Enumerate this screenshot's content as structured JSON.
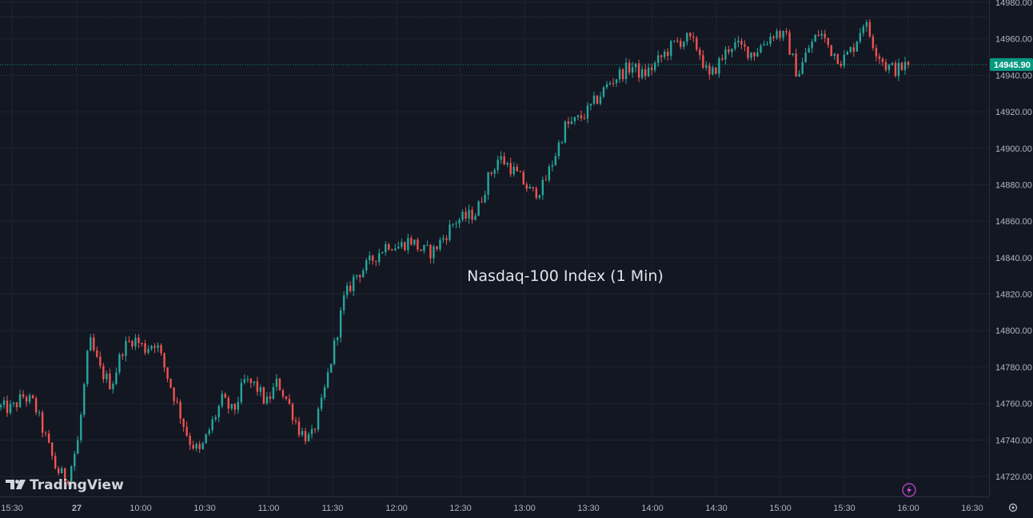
{
  "chart_data": {
    "type": "candlestick",
    "title": "Nasdaq-100 Index (1 Min)",
    "brand": "TradingView",
    "last_price": "14945.90",
    "high_line": 14972,
    "ylim": [
      14714,
      14980
    ],
    "y_ticks": [
      "14720.00",
      "14740.00",
      "14760.00",
      "14780.00",
      "14800.00",
      "14820.00",
      "14840.00",
      "14860.00",
      "14880.00",
      "14900.00",
      "14920.00",
      "14940.00",
      "14960.00",
      "14980.00"
    ],
    "x_ticks": [
      "15:30",
      "27",
      "10:00",
      "10:30",
      "11:00",
      "11:30",
      "12:00",
      "12:30",
      "13:00",
      "13:30",
      "14:00",
      "14:30",
      "15:00",
      "15:30",
      "16:00",
      "16:30"
    ],
    "colors": {
      "up": "#26a69a",
      "down": "#ef5350",
      "background": "#131722",
      "grid": "#1f2330",
      "badge": "#089981"
    },
    "path_points": [
      [
        "15:30",
        14758
      ],
      [
        "15:35",
        14757
      ],
      [
        "15:40",
        14764
      ],
      [
        "15:45",
        14760
      ],
      [
        "15:50",
        14742
      ],
      [
        "15:55",
        14724
      ],
      [
        "16:00",
        14718
      ],
      [
        "9:30",
        14740
      ],
      [
        "9:35",
        14795
      ],
      [
        "9:40",
        14778
      ],
      [
        "9:45",
        14770
      ],
      [
        "9:50",
        14790
      ],
      [
        "9:55",
        14796
      ],
      [
        "10:00",
        14790
      ],
      [
        "10:05",
        14794
      ],
      [
        "10:10",
        14776
      ],
      [
        "10:15",
        14758
      ],
      [
        "10:20",
        14740
      ],
      [
        "10:25",
        14733
      ],
      [
        "10:30",
        14748
      ],
      [
        "10:35",
        14762
      ],
      [
        "10:40",
        14755
      ],
      [
        "10:45",
        14772
      ],
      [
        "10:50",
        14770
      ],
      [
        "10:55",
        14760
      ],
      [
        "11:00",
        14772
      ],
      [
        "11:05",
        14760
      ],
      [
        "11:10",
        14745
      ],
      [
        "11:15",
        14740
      ],
      [
        "11:20",
        14760
      ],
      [
        "11:25",
        14788
      ],
      [
        "11:30",
        14817
      ],
      [
        "11:35",
        14830
      ],
      [
        "11:40",
        14835
      ],
      [
        "11:45",
        14842
      ],
      [
        "11:50",
        14848
      ],
      [
        "11:55",
        14846
      ],
      [
        "12:00",
        14850
      ],
      [
        "12:05",
        14844
      ],
      [
        "12:10",
        14843
      ],
      [
        "12:15",
        14851
      ],
      [
        "12:20",
        14860
      ],
      [
        "12:25",
        14862
      ],
      [
        "12:30",
        14865
      ],
      [
        "12:35",
        14883
      ],
      [
        "12:40",
        14895
      ],
      [
        "12:45",
        14890
      ],
      [
        "12:50",
        14883
      ],
      [
        "12:55",
        14875
      ],
      [
        "13:00",
        14879
      ],
      [
        "13:05",
        14895
      ],
      [
        "13:10",
        14912
      ],
      [
        "13:15",
        14915
      ],
      [
        "13:20",
        14920
      ],
      [
        "13:25",
        14928
      ],
      [
        "13:30",
        14936
      ],
      [
        "13:35",
        14941
      ],
      [
        "13:40",
        14945
      ],
      [
        "13:45",
        14940
      ],
      [
        "13:50",
        14945
      ],
      [
        "13:55",
        14952
      ],
      [
        "14:00",
        14958
      ],
      [
        "14:05",
        14960
      ],
      [
        "14:10",
        14955
      ],
      [
        "14:15",
        14938
      ],
      [
        "14:20",
        14948
      ],
      [
        "14:25",
        14957
      ],
      [
        "14:30",
        14955
      ],
      [
        "14:35",
        14952
      ],
      [
        "14:40",
        14958
      ],
      [
        "14:45",
        14964
      ],
      [
        "14:50",
        14960
      ],
      [
        "14:55",
        14940
      ],
      [
        "15:00",
        14955
      ],
      [
        "15:05",
        14964
      ],
      [
        "15:10",
        14954
      ],
      [
        "15:15",
        14948
      ],
      [
        "15:20",
        14955
      ],
      [
        "15:25",
        14970
      ],
      [
        "15:30",
        14955
      ],
      [
        "15:35",
        14945
      ],
      [
        "15:40",
        14943
      ],
      [
        "15:45",
        14946
      ]
    ]
  }
}
